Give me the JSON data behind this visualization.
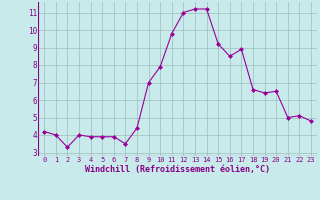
{
  "x": [
    0,
    1,
    2,
    3,
    4,
    5,
    6,
    7,
    8,
    9,
    10,
    11,
    12,
    13,
    14,
    15,
    16,
    17,
    18,
    19,
    20,
    21,
    22,
    23
  ],
  "y": [
    4.2,
    4.0,
    3.3,
    4.0,
    3.9,
    3.9,
    3.9,
    3.5,
    4.4,
    7.0,
    7.9,
    9.8,
    11.0,
    11.2,
    11.2,
    9.2,
    8.5,
    8.9,
    6.6,
    6.4,
    6.5,
    5.0,
    5.1,
    4.8
  ],
  "line_color": "#990099",
  "marker": "D",
  "marker_size": 2.0,
  "background_color": "#c8eaea",
  "grid_color": "#9dbdbd",
  "xlabel": "Windchill (Refroidissement éolien,°C)",
  "xlabel_color": "#880088",
  "tick_color": "#880088",
  "ylim": [
    2.8,
    11.6
  ],
  "yticks": [
    3,
    4,
    5,
    6,
    7,
    8,
    9,
    10,
    11
  ],
  "xlim": [
    -0.5,
    23.5
  ],
  "xticks": [
    0,
    1,
    2,
    3,
    4,
    5,
    6,
    7,
    8,
    9,
    10,
    11,
    12,
    13,
    14,
    15,
    16,
    17,
    18,
    19,
    20,
    21,
    22,
    23
  ]
}
